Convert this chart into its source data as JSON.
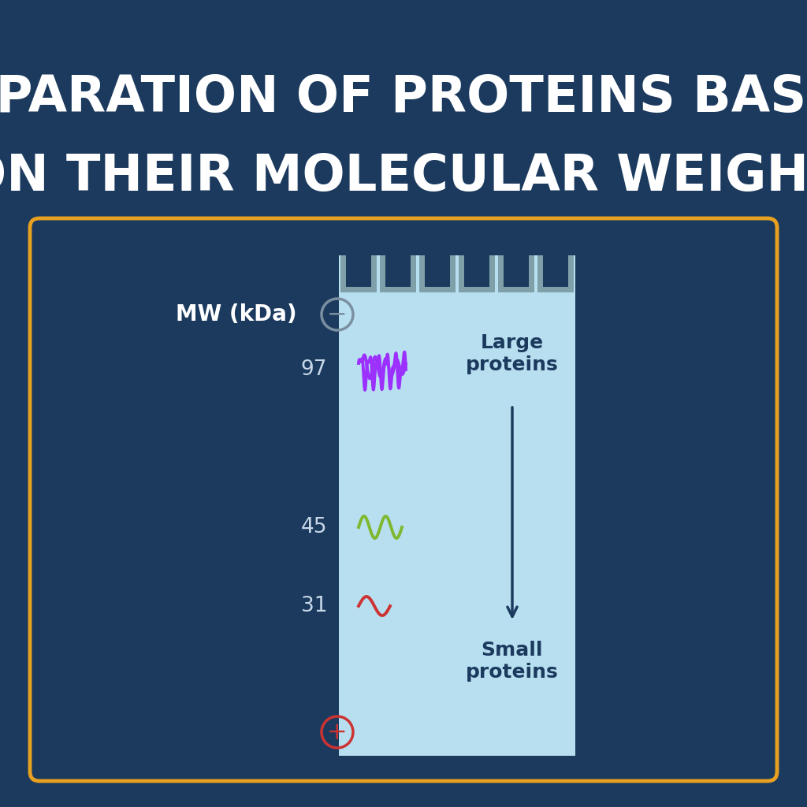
{
  "bg_color": "#1b3a5e",
  "title_line1": "SEPARATION OF PROTEINS BASED",
  "title_line2": "ON THEIR MOLECULAR WEIGHT",
  "title_color": "#ffffff",
  "title_fontsize": 46,
  "box_border_color": "#e8a020",
  "gel_color": "#b8dff0",
  "gel_slot_color": "#7fa0a8",
  "gel_slot_dark": "#1b3a5e",
  "mw_label": "MW (kDa)",
  "mw_label_color": "#ffffff",
  "mw_values": [
    "97",
    "45",
    "31"
  ],
  "label_color": "#c8d8e8",
  "large_proteins_label": "Large\nproteins",
  "small_proteins_label": "Small\nproteins",
  "proteins_label_color": "#1b3a5e",
  "arrow_color": "#1b3a5e",
  "neg_symbol_color": "#7a90a0",
  "pos_symbol_color": "#cc3333",
  "protein_large_color": "#9b30ff",
  "protein_medium_color": "#7fb830",
  "protein_small_color": "#cc3333"
}
